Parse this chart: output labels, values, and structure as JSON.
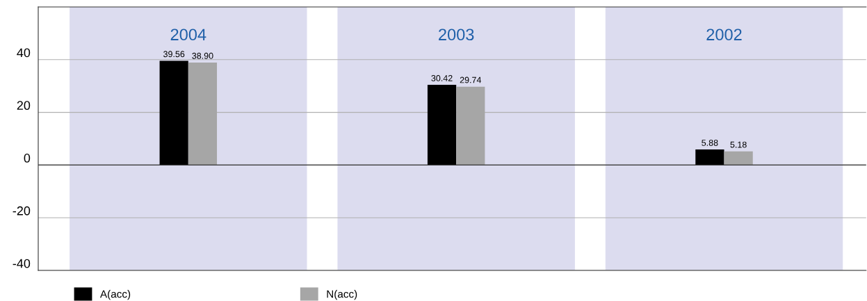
{
  "chart_data": {
    "type": "bar",
    "categories": [
      "2004",
      "2003",
      "2002"
    ],
    "series": [
      {
        "name": "A(acc)",
        "color": "#000000",
        "values": [
          39.56,
          30.42,
          5.88
        ],
        "value_labels": [
          "39.56",
          "30.42",
          "5.88"
        ]
      },
      {
        "name": "N(acc)",
        "color": "#a6a6a6",
        "values": [
          38.9,
          29.74,
          5.18
        ],
        "value_labels": [
          "38.90",
          "29.74",
          "5.18"
        ]
      }
    ],
    "ylim": [
      -40,
      60
    ],
    "yticks": [
      -40,
      -20,
      0,
      20,
      40
    ],
    "grid": "y",
    "legend": "bottom left"
  }
}
